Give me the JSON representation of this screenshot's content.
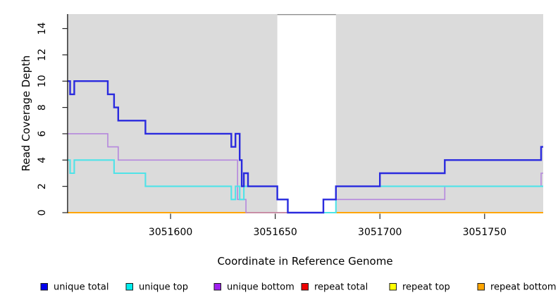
{
  "chart_data": {
    "type": "line",
    "step": true,
    "title": "",
    "xlabel": "Coordinate in Reference Genome",
    "ylabel": "Read Coverage Depth",
    "x_ticks": [
      3051600,
      3051650,
      3051700,
      3051750
    ],
    "x_range": [
      3051551,
      3051778
    ],
    "y_ticks": [
      0,
      2,
      4,
      6,
      8,
      10,
      12,
      14
    ],
    "y_range": [
      0,
      15.1
    ],
    "grid": "off",
    "legend_position": "bottom",
    "plot_bg": "#dbdbdb",
    "gap_band_color": "#ffffff",
    "gap_band_top_line_color": "#8f8f8f",
    "gap_region": {
      "start": 3051651,
      "end": 3051679
    },
    "series": [
      {
        "name": "unique total",
        "color": "#2a2ade",
        "legend_color": "#0000ee",
        "width": 2.4,
        "points": [
          [
            3051551,
            10
          ],
          [
            3051552,
            9
          ],
          [
            3051554,
            10
          ],
          [
            3051570,
            9
          ],
          [
            3051573,
            8
          ],
          [
            3051575,
            7
          ],
          [
            3051588,
            6
          ],
          [
            3051629,
            5
          ],
          [
            3051631,
            6
          ],
          [
            3051633,
            4
          ],
          [
            3051634,
            2
          ],
          [
            3051635,
            3
          ],
          [
            3051637,
            2
          ],
          [
            3051651,
            1
          ],
          [
            3051656,
            0
          ],
          [
            3051673,
            1
          ],
          [
            3051679,
            2
          ],
          [
            3051700,
            3
          ],
          [
            3051731,
            4
          ],
          [
            3051777,
            5
          ]
        ]
      },
      {
        "name": "unique top",
        "color": "#4fe3e8",
        "legend_color": "#00eeee",
        "width": 2.1,
        "points": [
          [
            3051551,
            4
          ],
          [
            3051552,
            3
          ],
          [
            3051554,
            4
          ],
          [
            3051573,
            3
          ],
          [
            3051588,
            2
          ],
          [
            3051629,
            1
          ],
          [
            3051631,
            2
          ],
          [
            3051633,
            1
          ],
          [
            3051635,
            2
          ],
          [
            3051651,
            1
          ],
          [
            3051656,
            0
          ],
          [
            3051679,
            2
          ]
        ]
      },
      {
        "name": "unique bottom",
        "color": "#b587dd",
        "legend_color": "#a020f0",
        "width": 1.6,
        "points": [
          [
            3051551,
            6
          ],
          [
            3051570,
            5
          ],
          [
            3051575,
            4
          ],
          [
            3051632,
            1
          ],
          [
            3051636,
            0
          ],
          [
            3051673,
            1
          ],
          [
            3051731,
            2
          ],
          [
            3051777,
            3
          ]
        ]
      },
      {
        "name": "repeat total",
        "color": "#ee0000",
        "legend_color": "#ee0000",
        "width": 1.4,
        "points": [
          [
            3051551,
            0
          ]
        ]
      },
      {
        "name": "repeat top",
        "color": "#ffff00",
        "legend_color": "#ffff00",
        "width": 1.4,
        "points": [
          [
            3051551,
            0
          ]
        ]
      },
      {
        "name": "repeat bottom",
        "color": "#ffa500",
        "legend_color": "#ffa500",
        "width": 2.0,
        "points": [
          [
            3051551,
            0
          ]
        ]
      }
    ]
  }
}
